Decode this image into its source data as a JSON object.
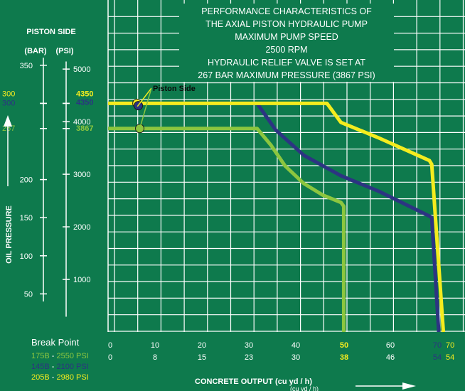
{
  "chart_data": {
    "type": "line",
    "title_lines": [
      "PERFORMANCE CHARACTERISTICS OF",
      "THE AXIAL PISTON HYDRAULIC PUMP",
      "MAXIMUM PUMP SPEED",
      "2500 RPM",
      "HYDRAULIC RELIEF VALVE IS SET AT",
      "267 BAR MAXIMUM PRESSURE (3867 PSI)"
    ],
    "ylabel": "OIL PRESSURE",
    "y_header": "PISTON SIDE",
    "bar_unit": "(BAR)",
    "psi_unit": "(PSI)",
    "xlabel": "CONCRETE OUTPUT  (cu yd / h)",
    "xlabel_extra": "(cu yd / h)",
    "bar_ticks": [
      {
        "label": "350",
        "value": 350
      },
      {
        "label": "200",
        "value": 200
      },
      {
        "label": "150",
        "value": 150
      },
      {
        "label": "100",
        "value": 100
      },
      {
        "label": "50",
        "value": 50
      }
    ],
    "psi_ticks": [
      {
        "label": "5000",
        "value": 345
      },
      {
        "label": "4000",
        "value": 276
      },
      {
        "label": "3000",
        "value": 207
      },
      {
        "label": "2000",
        "value": 138
      },
      {
        "label": "1000",
        "value": 69
      }
    ],
    "special_labels": [
      {
        "bar": "300",
        "psi": "4350",
        "value": 300,
        "color": "#f4ec1e",
        "bar_offset": -10,
        "psi_offset": -10
      },
      {
        "bar": "300",
        "psi": "4350",
        "value": 300,
        "color": "#2c3482",
        "bar_offset": 3,
        "psi_offset": 2
      },
      {
        "bar": "267",
        "psi": "3867",
        "value": 267,
        "color": "#8cc63f",
        "bar_offset": 3,
        "psi_offset": 3
      }
    ],
    "x_ticks_top": [
      "0",
      "10",
      "20",
      "30",
      "40",
      "50",
      "60",
      "70"
    ],
    "x_ticks_bottom": [
      "0",
      "8",
      "15",
      "23",
      "30",
      "38",
      "46",
      "54"
    ],
    "x_top_extra": "70",
    "x_bottom_extra": "54",
    "break_point": {
      "title": "Break Point",
      "items": [
        {
          "model": "175B",
          "sep": " - ",
          "psi": "2550 PSI",
          "color": "#8cc63f"
        },
        {
          "model": "145B",
          "sep": " - ",
          "psi": "2100 PSI",
          "color": "#2c3482"
        },
        {
          "model": "205B",
          "sep": " - ",
          "psi": "2980 PSI",
          "color": "#f4ec1e"
        }
      ]
    },
    "annotation": "Piston Side",
    "xlim": [
      0,
      80
    ],
    "ylim": [
      0,
      400
    ],
    "series": [
      {
        "color": "#8cc63f",
        "x": [
          0,
          32,
          35,
          38,
          42,
          46,
          50,
          50.6,
          50.6
        ],
        "y": [
          267,
          267,
          245,
          218,
          195,
          180,
          170,
          165,
          0
        ]
      },
      {
        "color": "#2c3482",
        "x": [
          0,
          32,
          36,
          42,
          50,
          58,
          69,
          69.5,
          71
        ],
        "y": [
          300,
          300,
          265,
          232,
          205,
          185,
          152,
          150,
          0
        ]
      },
      {
        "color": "#f4ec1e",
        "x": [
          0,
          47,
          50,
          58,
          69,
          69.5,
          72
        ],
        "y": [
          300,
          300,
          275,
          255,
          225,
          220,
          0
        ]
      }
    ],
    "markers": [
      {
        "x": 6.2,
        "y": 300,
        "color": "#f4ec1e"
      },
      {
        "x": 6.5,
        "y": 297,
        "color": "#2c3482"
      },
      {
        "x": 6.8,
        "y": 267,
        "color": "#8cc63f"
      }
    ],
    "grid": true
  }
}
